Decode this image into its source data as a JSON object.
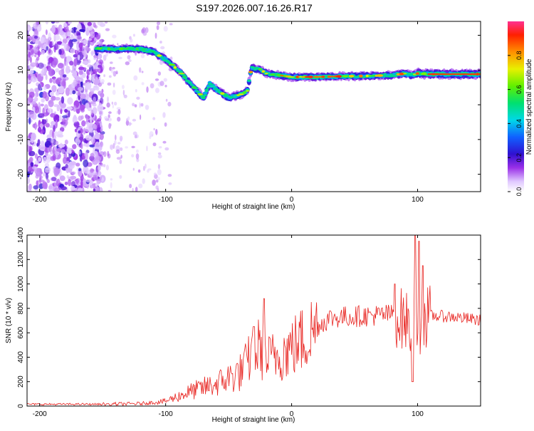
{
  "title": "S197.2026.007.16.26.R17",
  "chart_data": [
    {
      "type": "heatmap",
      "title": "S197.2026.007.16.26.R17",
      "xlabel": "Height of straight line (km)",
      "ylabel": "Frequency (Hz)",
      "xlim": [
        -210,
        150
      ],
      "ylim": [
        -25,
        24
      ],
      "xticks": [
        -200,
        -100,
        0,
        100
      ],
      "yticks": [
        -20,
        -10,
        0,
        10,
        20
      ],
      "colorbar": {
        "label": "Normalized spectral amplitude",
        "range": [
          0,
          1
        ],
        "ticks": [
          0.0,
          0.2,
          0.4,
          0.6,
          0.8
        ]
      },
      "track": {
        "x": [
          -155,
          -140,
          -130,
          -120,
          -110,
          -100,
          -90,
          -80,
          -70,
          -65,
          -60,
          -50,
          -40,
          -35,
          -32,
          -25,
          -20,
          -10,
          0,
          10,
          20,
          40,
          60,
          80,
          90,
          95,
          100,
          110,
          130,
          150
        ],
        "frequency": [
          16.2,
          16.0,
          16.2,
          16.0,
          15.3,
          13.0,
          10.0,
          6.0,
          2.0,
          6.0,
          4.5,
          2.0,
          3.0,
          4.0,
          10.5,
          10.2,
          9.0,
          8.5,
          8.0,
          8.0,
          8.0,
          8.2,
          8.3,
          8.5,
          9.0,
          8.5,
          9.0,
          8.8,
          8.8,
          8.8
        ]
      },
      "noise_region_x": [
        -210,
        -160
      ]
    },
    {
      "type": "line",
      "xlabel": "Height of straight line (km)",
      "ylabel": "SNR (10 * v/v)",
      "xlim": [
        -210,
        150
      ],
      "ylim": [
        0,
        1400
      ],
      "xticks": [
        -200,
        -100,
        0,
        100
      ],
      "yticks": [
        0,
        200,
        400,
        600,
        800,
        1000,
        1200,
        1400
      ],
      "color": "#e8231f",
      "envelope": {
        "x": [
          -210,
          -150,
          -120,
          -100,
          -80,
          -60,
          -40,
          -30,
          -25,
          -20,
          -10,
          0,
          10,
          20,
          30,
          40,
          60,
          80,
          90,
          95,
          100,
          105,
          110,
          130,
          150
        ],
        "y": [
          15,
          15,
          20,
          40,
          120,
          180,
          280,
          450,
          480,
          380,
          420,
          480,
          550,
          650,
          720,
          730,
          740,
          750,
          700,
          650,
          650,
          720,
          740,
          730,
          700
        ]
      },
      "spikes": [
        {
          "x": -22,
          "y": 880
        },
        {
          "x": -30,
          "y": 650
        },
        {
          "x": 82,
          "y": 1000
        },
        {
          "x": 98,
          "y": 1400
        },
        {
          "x": 101,
          "y": 1350
        },
        {
          "x": 104,
          "y": 1150
        },
        {
          "x": 96,
          "y": 200
        }
      ]
    }
  ]
}
